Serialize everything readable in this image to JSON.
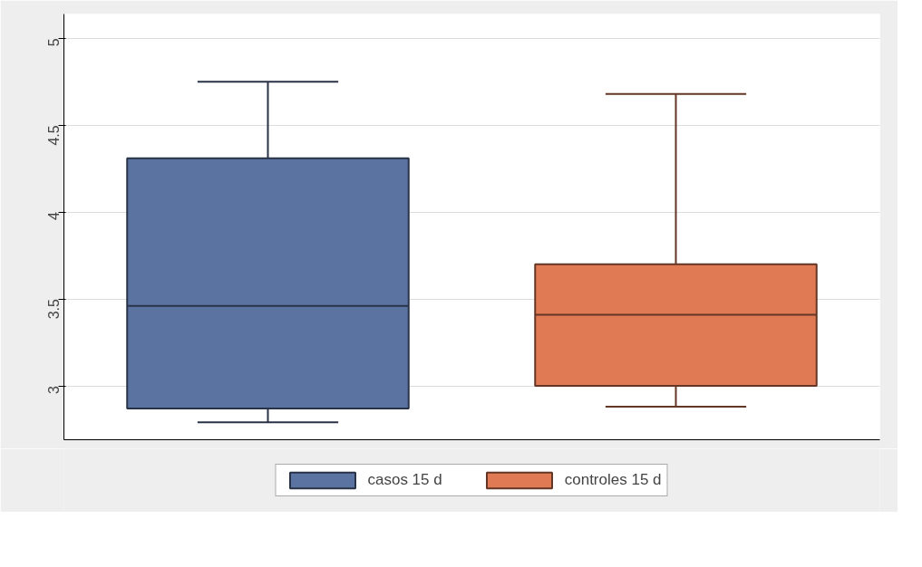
{
  "chart_data": {
    "type": "box",
    "categories": [
      null
    ],
    "series": [
      {
        "name": "casos 15 d",
        "color": "#5b73a0",
        "boxes": [
          {
            "low": 2.79,
            "q1": 2.87,
            "median": 3.46,
            "q3": 4.31,
            "high": 4.75
          }
        ]
      },
      {
        "name": "controles 15 d",
        "color": "#e07a55",
        "boxes": [
          {
            "low": 2.88,
            "q1": 3.0,
            "median": 3.41,
            "q3": 3.7,
            "high": 4.68
          }
        ]
      }
    ],
    "ylim": [
      2.69,
      5.14
    ],
    "yticks": [
      3,
      3.5,
      4,
      4.5,
      5
    ],
    "grid": "y",
    "legend": "bottom",
    "tick_labels": "y"
  }
}
